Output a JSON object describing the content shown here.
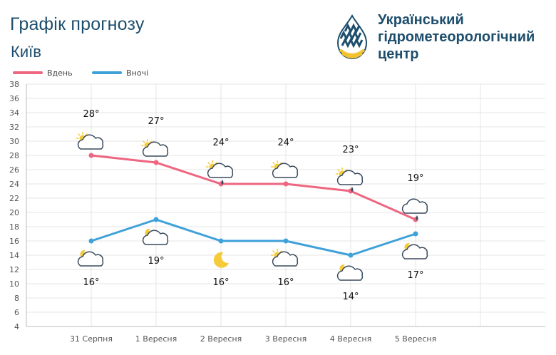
{
  "header": {
    "title": "Графік прогнозу",
    "city": "Київ",
    "org_lines": [
      "Український",
      "гідрометеорологічний",
      "центр"
    ]
  },
  "legend": [
    {
      "label": "Вдень",
      "color": "#ee6680"
    },
    {
      "label": "Вночі",
      "color": "#3fa1d9"
    }
  ],
  "chart_data": {
    "type": "line",
    "categories": [
      "31 Серпня",
      "1 Вересня",
      "2 Вересня",
      "3 Вересня",
      "4 Вересня",
      "5 Вересня"
    ],
    "series": [
      {
        "name": "Вдень",
        "color": "#ee6680",
        "values": [
          28,
          27,
          24,
          24,
          23,
          19
        ],
        "labels": [
          "28°",
          "27°",
          "24°",
          "24°",
          "23°",
          "19°"
        ],
        "icons": [
          "sun-cloud-icon",
          "sun-cloud-icon",
          "sun-cloud-rain-icon",
          "sun-cloud-icon",
          "sun-cloud-rain-icon",
          "cloud-rain-icon"
        ]
      },
      {
        "name": "Вночі",
        "color": "#3fa1d9",
        "values": [
          16,
          19,
          16,
          16,
          14,
          17
        ],
        "labels": [
          "16°",
          "19°",
          "16°",
          "16°",
          "14°",
          "17°"
        ],
        "icons": [
          "moon-cloud-icon",
          "moon-cloud-icon",
          "moon-icon",
          "sun-cloud-icon",
          "moon-cloud-icon",
          "moon-cloud-icon"
        ]
      }
    ],
    "ylim": [
      4,
      38
    ],
    "yticks": [
      4,
      6,
      8,
      10,
      12,
      14,
      16,
      18,
      20,
      22,
      24,
      26,
      28,
      30,
      32,
      34,
      36,
      38
    ],
    "grid": true,
    "legend_position": "top-left"
  }
}
